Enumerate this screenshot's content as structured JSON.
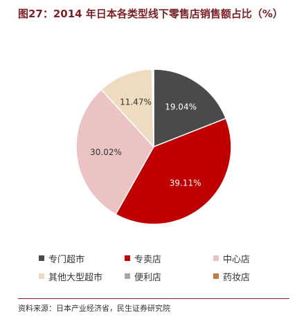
{
  "title": "图27：2014 年日本各类型线下零售店销售额占比（%）",
  "chart_data": {
    "type": "pie",
    "title": "图27：2014 年日本各类型线下零售店销售额占比（%）",
    "slices": [
      {
        "label": "专门超市",
        "value": 19.04,
        "display": "19.04%",
        "color": "#4a4a4a",
        "text_color": "#ffffff"
      },
      {
        "label": "专卖店",
        "value": 39.11,
        "display": "39.11%",
        "color": "#c00000",
        "text_color": "#ffffff"
      },
      {
        "label": "中心店",
        "value": 30.02,
        "display": "30.02%",
        "color": "#ebc3c3",
        "text_color": "#333333"
      },
      {
        "label": "其他大型超市",
        "value": 11.47,
        "display": "11.47%",
        "color": "#eddcc0",
        "text_color": "#333333"
      },
      {
        "label": "便利店",
        "value": 0.25,
        "display": "",
        "color": "#a6a6a6",
        "text_color": "#333333"
      },
      {
        "label": "药妆店",
        "value": 0.11,
        "display": "",
        "color": "#c07a4a",
        "text_color": "#333333"
      }
    ],
    "legend_position": "bottom"
  },
  "legend": [
    {
      "label": "专门超市",
      "color": "#4a4a4a"
    },
    {
      "label": "专卖店",
      "color": "#c00000"
    },
    {
      "label": "中心店",
      "color": "#ebc3c3"
    },
    {
      "label": "其他大型超市",
      "color": "#eddcc0"
    },
    {
      "label": "便利店",
      "color": "#a6a6a6"
    },
    {
      "label": "药妆店",
      "color": "#c07a4a"
    }
  ],
  "source": "资料来源：日本产业经济省，民生证券研究院"
}
